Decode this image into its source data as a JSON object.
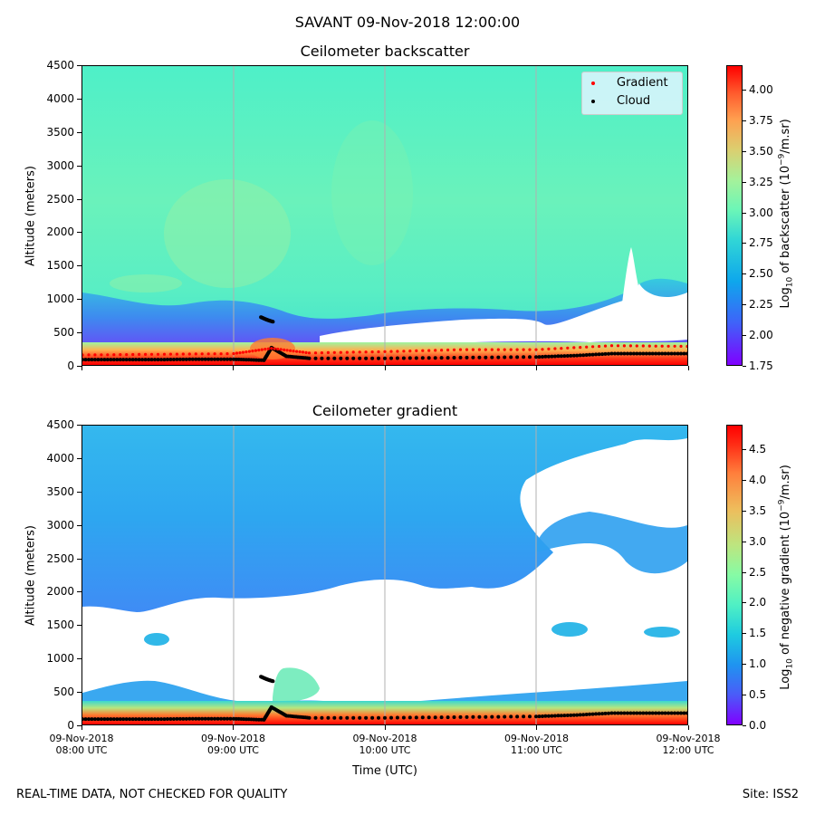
{
  "suptitle": "SAVANT 09-Nov-2018 12:00:00",
  "footer_left": "REAL-TIME DATA, NOT CHECKED FOR QUALITY",
  "footer_right": "Site: ISS2",
  "colors": {
    "cloud": "#000000",
    "gradient": "#ff0000",
    "grid": "#b0b0b0"
  },
  "chart_data": [
    {
      "type": "heatmap",
      "title": "Ceilometer backscatter",
      "ylabel": "Altitude (meters)",
      "colorbar_label": "Log10 of backscatter (10^-9/m.sr)",
      "colorbar_label_parts": {
        "a": "Log",
        "b": "10",
        "c": " of backscatter (10",
        "d": "−9",
        "e": "/m.sr)"
      },
      "colorbar_ticks": [
        "1.75",
        "2.00",
        "2.25",
        "2.50",
        "2.75",
        "3.00",
        "3.25",
        "3.50",
        "3.75",
        "4.00"
      ],
      "colorbar_range": [
        1.75,
        4.2
      ],
      "ylim": [
        0,
        4500
      ],
      "yticks": [
        "0",
        "500",
        "1000",
        "1500",
        "2000",
        "2500",
        "3000",
        "3500",
        "4000",
        "4500"
      ],
      "x_range_hours": [
        8,
        12
      ],
      "grid": true,
      "legend": {
        "placement": "top-right",
        "entries": [
          "Gradient",
          "Cloud"
        ]
      },
      "series": [
        {
          "name": "Cloud",
          "x": [
            8.0,
            8.25,
            8.5,
            8.75,
            9.0,
            9.2,
            9.25,
            9.35,
            9.5,
            10.0,
            10.5,
            11.0,
            11.25,
            11.5,
            11.75,
            12.0
          ],
          "y": [
            80,
            80,
            80,
            85,
            85,
            70,
            260,
            130,
            100,
            100,
            110,
            120,
            140,
            170,
            170,
            170
          ]
        },
        {
          "name": "Cloud (upper)",
          "x": [
            9.18,
            9.22,
            9.26
          ],
          "y": [
            720,
            680,
            650
          ]
        },
        {
          "name": "Gradient",
          "x": [
            8.0,
            8.5,
            9.0,
            9.25,
            9.5,
            10.0,
            10.5,
            11.0,
            11.5,
            12.0
          ],
          "y": [
            150,
            160,
            170,
            250,
            180,
            200,
            230,
            230,
            290,
            280
          ]
        }
      ]
    },
    {
      "type": "heatmap",
      "title": "Ceilometer gradient",
      "ylabel": "Altitude (meters)",
      "xlabel": "Time (UTC)",
      "colorbar_label": "Log10 of negative gradient (10^-9/m.sr)",
      "colorbar_label_parts": {
        "a": "Log",
        "b": "10",
        "c": " of negative gradient (10",
        "d": "−9",
        "e": "/m.sr)"
      },
      "colorbar_ticks": [
        "0.0",
        "0.5",
        "1.0",
        "1.5",
        "2.0",
        "2.5",
        "3.0",
        "3.5",
        "4.0",
        "4.5"
      ],
      "colorbar_range": [
        0,
        4.9
      ],
      "ylim": [
        0,
        4500
      ],
      "yticks": [
        "0",
        "500",
        "1000",
        "1500",
        "2000",
        "2500",
        "3000",
        "3500",
        "4000",
        "4500"
      ],
      "xticks": [
        {
          "date": "09-Nov-2018",
          "time": "08:00 UTC",
          "hour": 8
        },
        {
          "date": "09-Nov-2018",
          "time": "09:00 UTC",
          "hour": 9
        },
        {
          "date": "09-Nov-2018",
          "time": "10:00 UTC",
          "hour": 10
        },
        {
          "date": "09-Nov-2018",
          "time": "11:00 UTC",
          "hour": 11
        },
        {
          "date": "09-Nov-2018",
          "time": "12:00 UTC",
          "hour": 12
        }
      ],
      "x_range_hours": [
        8,
        12
      ],
      "grid": true,
      "series": [
        {
          "name": "Cloud",
          "x": [
            8.0,
            8.25,
            8.5,
            8.75,
            9.0,
            9.2,
            9.25,
            9.35,
            9.5,
            10.0,
            10.5,
            11.0,
            11.25,
            11.5,
            11.75,
            12.0
          ],
          "y": [
            80,
            80,
            80,
            85,
            85,
            70,
            260,
            130,
            100,
            100,
            110,
            120,
            140,
            170,
            170,
            170
          ]
        },
        {
          "name": "Cloud (upper)",
          "x": [
            9.18,
            9.22,
            9.26
          ],
          "y": [
            720,
            680,
            650
          ]
        }
      ]
    }
  ]
}
